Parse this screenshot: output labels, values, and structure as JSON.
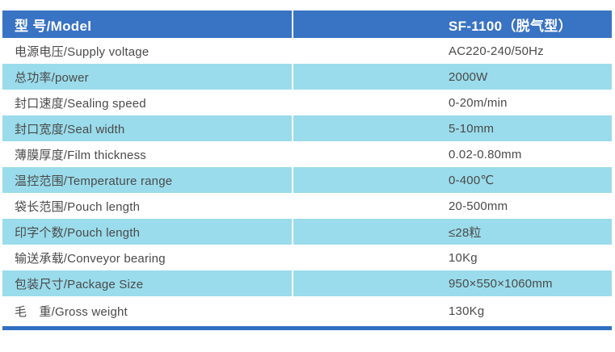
{
  "table": {
    "header": {
      "label": "型 号/Model",
      "value": "SF-1100（脱气型）"
    },
    "rows": [
      {
        "label": "电源电压/Supply voltage",
        "value": "AC220-240/50Hz"
      },
      {
        "label": "总功率/power",
        "value": "2000W"
      },
      {
        "label": "封口速度/Sealing speed",
        "value": "0-20m/min"
      },
      {
        "label": "封口宽度/Seal width",
        "value": "5-10mm"
      },
      {
        "label": "薄膜厚度/Film thickness",
        "value": "0.02-0.80mm"
      },
      {
        "label": "温控范围/Temperature range",
        "value": "0-400℃"
      },
      {
        "label": "袋长范围/Pouch length",
        "value": "20-500mm"
      },
      {
        "label": "印字个数/Pouch length",
        "value": "≤28粒"
      },
      {
        "label": "输送承载/Conveyor bearing",
        "value": "10Kg"
      },
      {
        "label": "包装尺寸/Package Size",
        "value": "950×550×1060mm"
      },
      {
        "label": "毛　重/Gross weight",
        "value": "130Kg"
      }
    ]
  },
  "colors": {
    "header_blue": "#3973c4",
    "row_light_blue": "#9adceb",
    "bottom_rule_blue": "#2f6fc2",
    "text_gray": "#4a4a4a",
    "header_text": "#ffffff"
  }
}
